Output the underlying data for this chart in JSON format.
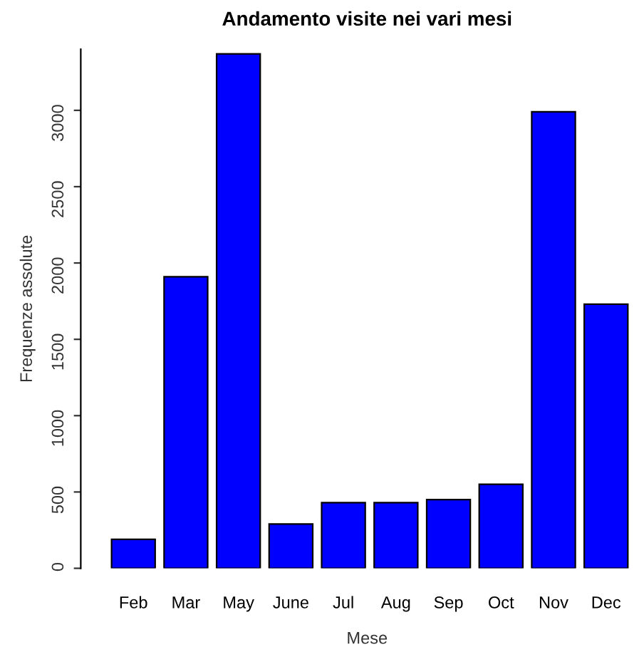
{
  "chart_data": {
    "type": "bar",
    "title": "Andamento visite nei vari mesi",
    "xlabel": "Mese",
    "ylabel": "Frequenze assolute",
    "categories": [
      "Feb",
      "Mar",
      "May",
      "June",
      "Jul",
      "Aug",
      "Sep",
      "Oct",
      "Nov",
      "Dec"
    ],
    "values": [
      190,
      1910,
      3370,
      290,
      430,
      430,
      450,
      550,
      2990,
      1730
    ],
    "color": "#0000ff",
    "ylim": [
      0,
      3400
    ],
    "yticks": [
      0,
      500,
      1000,
      1500,
      2000,
      2500,
      3000
    ],
    "grid": false
  }
}
